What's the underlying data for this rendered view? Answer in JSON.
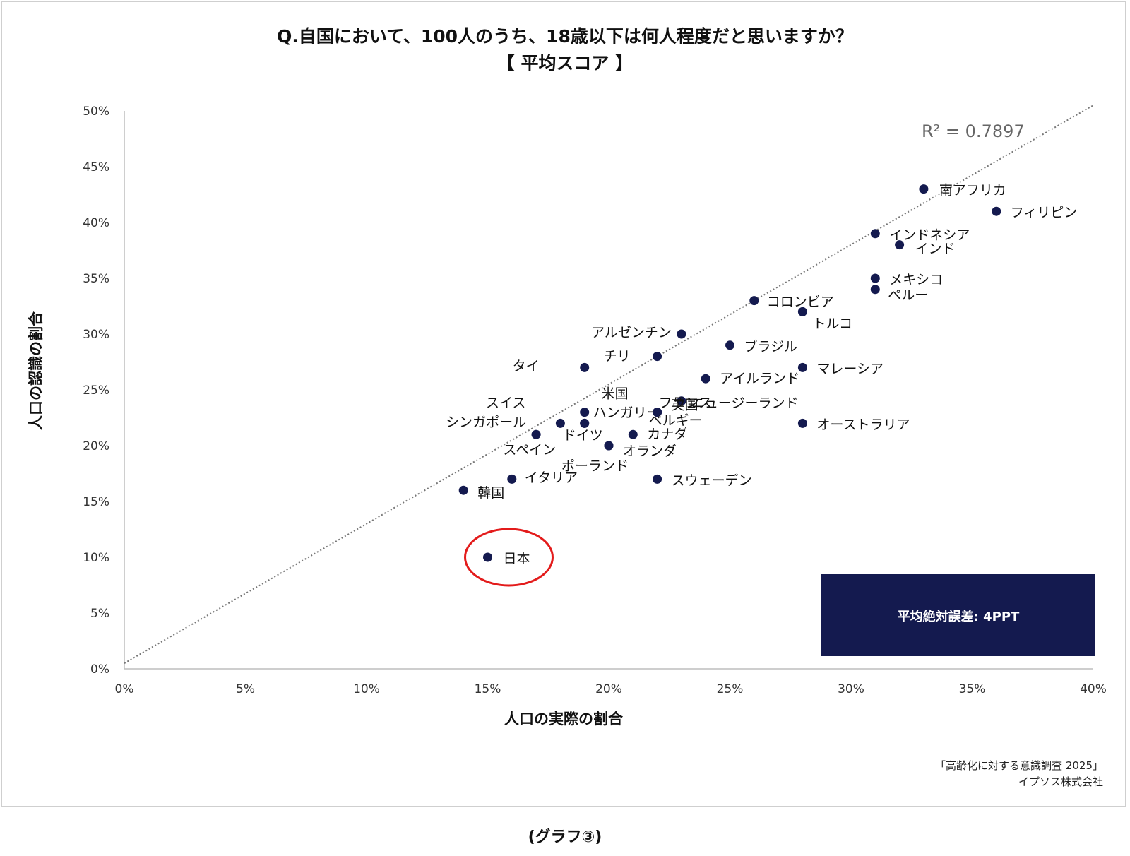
{
  "header": {
    "title": "Q.自国において、100人のうち、18歳以下は何人程度だと思いますか？",
    "subtitle": "【 平均スコア 】"
  },
  "footer": {
    "source_line1": "「高齢化に対する意識調査 2025」",
    "source_line2": "イプソス株式会社",
    "caption": "(グラフ③)"
  },
  "chart_data": {
    "type": "scatter",
    "xlabel": "人口の実際の割合",
    "ylabel": "人口の認識の割合",
    "xlim": [
      0,
      40
    ],
    "ylim": [
      0,
      50
    ],
    "x_ticks": [
      "0%",
      "5%",
      "10%",
      "15%",
      "20%",
      "25%",
      "30%",
      "35%",
      "40%"
    ],
    "y_ticks": [
      "0%",
      "5%",
      "10%",
      "15%",
      "20%",
      "25%",
      "30%",
      "35%",
      "40%",
      "45%",
      "50%"
    ],
    "grid": false,
    "trendline": {
      "style": "dotted",
      "x": [
        0,
        40
      ],
      "y": [
        0.5,
        50.5
      ],
      "r_squared": "R² = 0.7897"
    },
    "annotation": {
      "text": "平均絶対誤差: 4PPT",
      "color": "#141a4f"
    },
    "highlight": {
      "point": "日本",
      "color": "#e31b1b"
    },
    "marker_color": "#141a4f",
    "points": [
      {
        "label": "南アフリカ",
        "x": 33,
        "y": 43
      },
      {
        "label": "フィリピン",
        "x": 36,
        "y": 41
      },
      {
        "label": "インドネシア",
        "x": 31,
        "y": 39
      },
      {
        "label": "インド",
        "x": 32,
        "y": 38
      },
      {
        "label": "メキシコ",
        "x": 31,
        "y": 35
      },
      {
        "label": "ペルー",
        "x": 31,
        "y": 34
      },
      {
        "label": "コロンビア",
        "x": 26,
        "y": 33
      },
      {
        "label": "トルコ",
        "x": 28,
        "y": 32
      },
      {
        "label": "アルゼンチン",
        "x": 23,
        "y": 30
      },
      {
        "label": "ブラジル",
        "x": 25,
        "y": 29
      },
      {
        "label": "チリ",
        "x": 22,
        "y": 28
      },
      {
        "label": "タイ",
        "x": 19,
        "y": 27
      },
      {
        "label": "マレーシア",
        "x": 28,
        "y": 27
      },
      {
        "label": "アイルランド",
        "x": 24,
        "y": 26
      },
      {
        "label": "米国",
        "x": 19,
        "y": 23
      },
      {
        "label": "ニュージーランド",
        "x": 23,
        "y": 24
      },
      {
        "label": "スイス",
        "x": 18,
        "y": 22
      },
      {
        "label": "ハンガリー",
        "x": 19,
        "y": 22
      },
      {
        "label": "英国",
        "x": 22,
        "y": 23
      },
      {
        "label": "シンガポール",
        "x": 17,
        "y": 21
      },
      {
        "label": "カナダ",
        "x": 21,
        "y": 21
      },
      {
        "label": "フランス",
        "x": 22,
        "y": 23
      },
      {
        "label": "ドイツ",
        "x": 19,
        "y": 22
      },
      {
        "label": "ベルギー",
        "x": 22,
        "y": 23
      },
      {
        "label": "スペイン",
        "x": 17,
        "y": 21
      },
      {
        "label": "オランダ",
        "x": 20,
        "y": 20
      },
      {
        "label": "ポーランド",
        "x": 20,
        "y": 20
      },
      {
        "label": "オーストラリア",
        "x": 28,
        "y": 22
      },
      {
        "label": "イタリア",
        "x": 16,
        "y": 17
      },
      {
        "label": "スウェーデン",
        "x": 22,
        "y": 17
      },
      {
        "label": "韓国",
        "x": 14,
        "y": 16
      },
      {
        "label": "日本",
        "x": 15,
        "y": 10
      }
    ]
  }
}
